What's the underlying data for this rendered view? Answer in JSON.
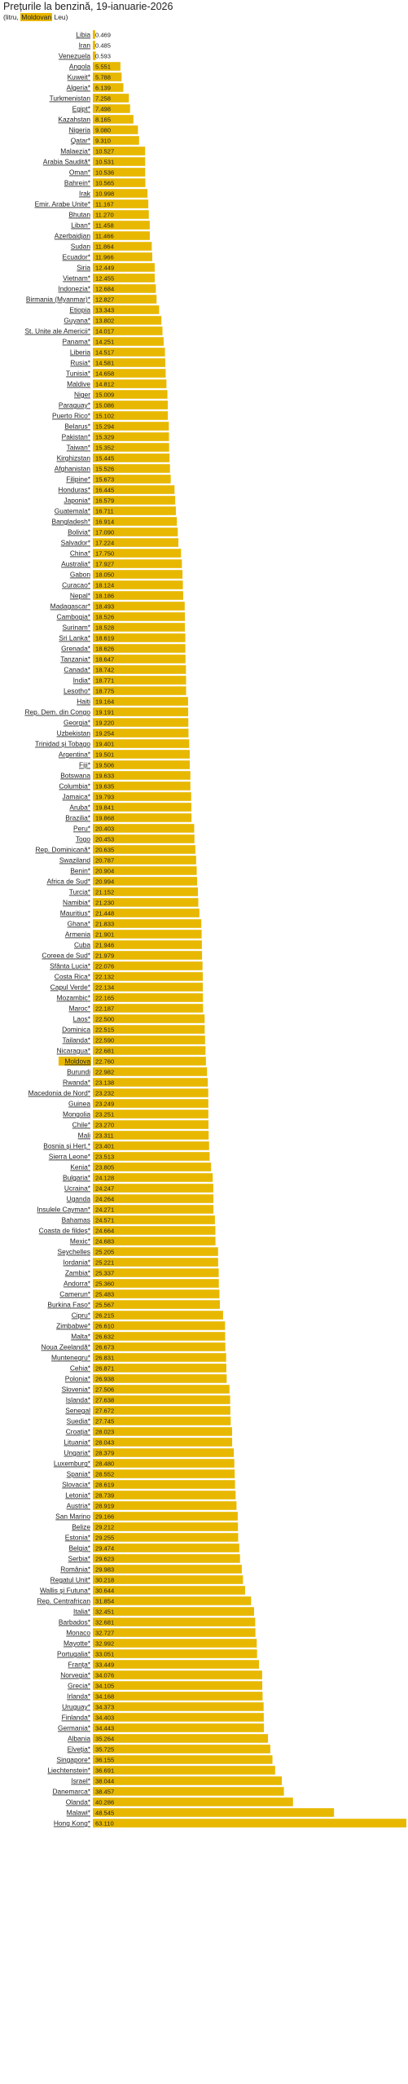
{
  "title": "Prețurile la benzină, 19-ianuarie-2026",
  "subtitle_pre": "(litru, ",
  "subtitle_hl": "Moldovan",
  "subtitle_post": " Leu)",
  "colors": {
    "bar": "#e8b800",
    "highlight": "#e8b800",
    "text": "#222222"
  },
  "chart_data": {
    "type": "bar",
    "orientation": "horizontal",
    "title": "Prețurile la benzină, 19-ianuarie-2026",
    "unit": "MDL per litru",
    "highlight_category": "Moldova",
    "xlim": [
      0,
      63.11
    ],
    "grid": false,
    "categories": [
      "Libia",
      "Iran",
      "Venezuela",
      "Angola",
      "Kuweit*",
      "Algeria*",
      "Turkmenistan",
      "Egipt*",
      "Kazahstan",
      "Nigeria",
      "Qatar*",
      "Malaezia*",
      "Arabia Saudită*",
      "Oman*",
      "Bahrein*",
      "Irak",
      "Emir. Arabe Unite*",
      "Bhutan",
      "Liban*",
      "Azerbaidjan",
      "Sudan",
      "Ecuador*",
      "Siria",
      "Vietnam*",
      "Indonezia*",
      "Birmania (Myanmar)*",
      "Etiopia",
      "Guyana*",
      "St. Unite ale Americii*",
      "Panama*",
      "Liberia",
      "Rusia*",
      "Tunisia*",
      "Maldive",
      "Niger",
      "Paraguay*",
      "Puerto Rico*",
      "Belarus*",
      "Pakistan*",
      "Taiwan*",
      "Kirghizstan",
      "Afghanistan",
      "Filipine*",
      "Honduras*",
      "Japonia*",
      "Guatemala*",
      "Bangladesh*",
      "Bolivia*",
      "Salvador*",
      "China*",
      "Australia*",
      "Gabon",
      "Curacao*",
      "Nepal*",
      "Madagascar*",
      "Cambogia*",
      "Surinam*",
      "Sri Lanka*",
      "Grenada*",
      "Tanzania*",
      "Canada*",
      "India*",
      "Lesotho*",
      "Haiti",
      "Rep. Dem. din Congo",
      "Georgia*",
      "Uzbekistan",
      "Trinidad și Tobago",
      "Argentina*",
      "Fiji*",
      "Botswana",
      "Columbia*",
      "Jamaica*",
      "Aruba*",
      "Brazilia*",
      "Peru*",
      "Togo",
      "Rep. Dominicană*",
      "Swaziland",
      "Benin*",
      "Africa de Sud*",
      "Turcia*",
      "Namibia*",
      "Mauritius*",
      "Ghana*",
      "Armenia",
      "Cuba",
      "Coreea de Sud*",
      "Sfânta Lucia*",
      "Costa Rica*",
      "Capul Verde*",
      "Mozambic*",
      "Maroc*",
      "Laos*",
      "Dominica",
      "Tailanda*",
      "Nicaragua*",
      "Moldova",
      "Burundi",
      "Rwanda*",
      "Macedonia de Nord*",
      "Guinea",
      "Mongolia",
      "Chile*",
      "Mali",
      "Bosnia și Herț.*",
      "Sierra Leone*",
      "Kenia*",
      "Bulgaria*",
      "Ucraina*",
      "Uganda",
      "Insulele Cayman*",
      "Bahamas",
      "Coasta de fildeș*",
      "Mexic*",
      "Seychelles",
      "Iordania*",
      "Zambia*",
      "Andorra*",
      "Camerun*",
      "Burkina Faso*",
      "Cipru*",
      "Zimbabwe*",
      "Malta*",
      "Noua Zeelandă*",
      "Muntenegru*",
      "Cehia*",
      "Polonia*",
      "Slovenia*",
      "Islanda*",
      "Senegal",
      "Suedia*",
      "Croația*",
      "Lituania*",
      "Ungaria*",
      "Luxemburg*",
      "Spania*",
      "Slovacia*",
      "Letonia*",
      "Austria*",
      "San Marino",
      "Belize",
      "Estonia*",
      "Belgia*",
      "Serbia*",
      "România*",
      "Regatul Unit*",
      "Wallis și Futuna*",
      "Rep. Centrafrican",
      "Italia*",
      "Barbados*",
      "Monaco",
      "Mayotte*",
      "Portugalia*",
      "Franța*",
      "Norvegia*",
      "Grecia*",
      "Irlanda*",
      "Uruguay*",
      "Finlanda*",
      "Germania*",
      "Albania",
      "Elveția*",
      "Singapore*",
      "Liechtenstein*",
      "Israel*",
      "Danemarca*",
      "Olanda*",
      "Malawi*",
      "Hong Kong*"
    ],
    "values": [
      0.469,
      0.485,
      0.593,
      5.551,
      5.788,
      6.139,
      7.258,
      7.498,
      8.165,
      9.08,
      9.31,
      10.527,
      10.531,
      10.536,
      10.565,
      10.998,
      11.167,
      11.27,
      11.458,
      11.466,
      11.864,
      11.966,
      12.449,
      12.455,
      12.684,
      12.827,
      13.343,
      13.802,
      14.017,
      14.251,
      14.517,
      14.581,
      14.658,
      14.812,
      15.009,
      15.086,
      15.102,
      15.294,
      15.329,
      15.352,
      15.445,
      15.526,
      15.673,
      16.445,
      16.579,
      16.711,
      16.914,
      17.09,
      17.224,
      17.75,
      17.927,
      18.05,
      18.124,
      18.186,
      18.493,
      18.526,
      18.528,
      18.619,
      18.626,
      18.647,
      18.742,
      18.771,
      18.775,
      19.164,
      19.191,
      19.22,
      19.254,
      19.401,
      19.501,
      19.506,
      19.633,
      19.635,
      19.793,
      19.841,
      19.868,
      20.403,
      20.453,
      20.635,
      20.787,
      20.904,
      20.994,
      21.152,
      21.23,
      21.448,
      21.833,
      21.901,
      21.946,
      21.979,
      22.076,
      22.132,
      22.134,
      22.165,
      22.187,
      22.5,
      22.515,
      22.59,
      22.681,
      22.76,
      22.982,
      23.138,
      23.232,
      23.249,
      23.251,
      23.27,
      23.311,
      23.401,
      23.513,
      23.805,
      24.128,
      24.247,
      24.264,
      24.271,
      24.571,
      24.664,
      24.683,
      25.205,
      25.221,
      25.337,
      25.36,
      25.483,
      25.567,
      26.215,
      26.61,
      26.632,
      26.673,
      26.831,
      26.871,
      26.938,
      27.506,
      27.638,
      27.672,
      27.745,
      28.023,
      28.043,
      28.379,
      28.48,
      28.552,
      28.619,
      28.739,
      28.919,
      29.166,
      29.212,
      29.255,
      29.474,
      29.623,
      29.983,
      30.218,
      30.644,
      31.854,
      32.451,
      32.681,
      32.727,
      32.992,
      33.051,
      33.449,
      34.076,
      34.105,
      34.168,
      34.373,
      34.403,
      34.443,
      35.264,
      35.725,
      36.155,
      36.691,
      38.044,
      38.457,
      40.286,
      48.545,
      63.11
    ]
  }
}
